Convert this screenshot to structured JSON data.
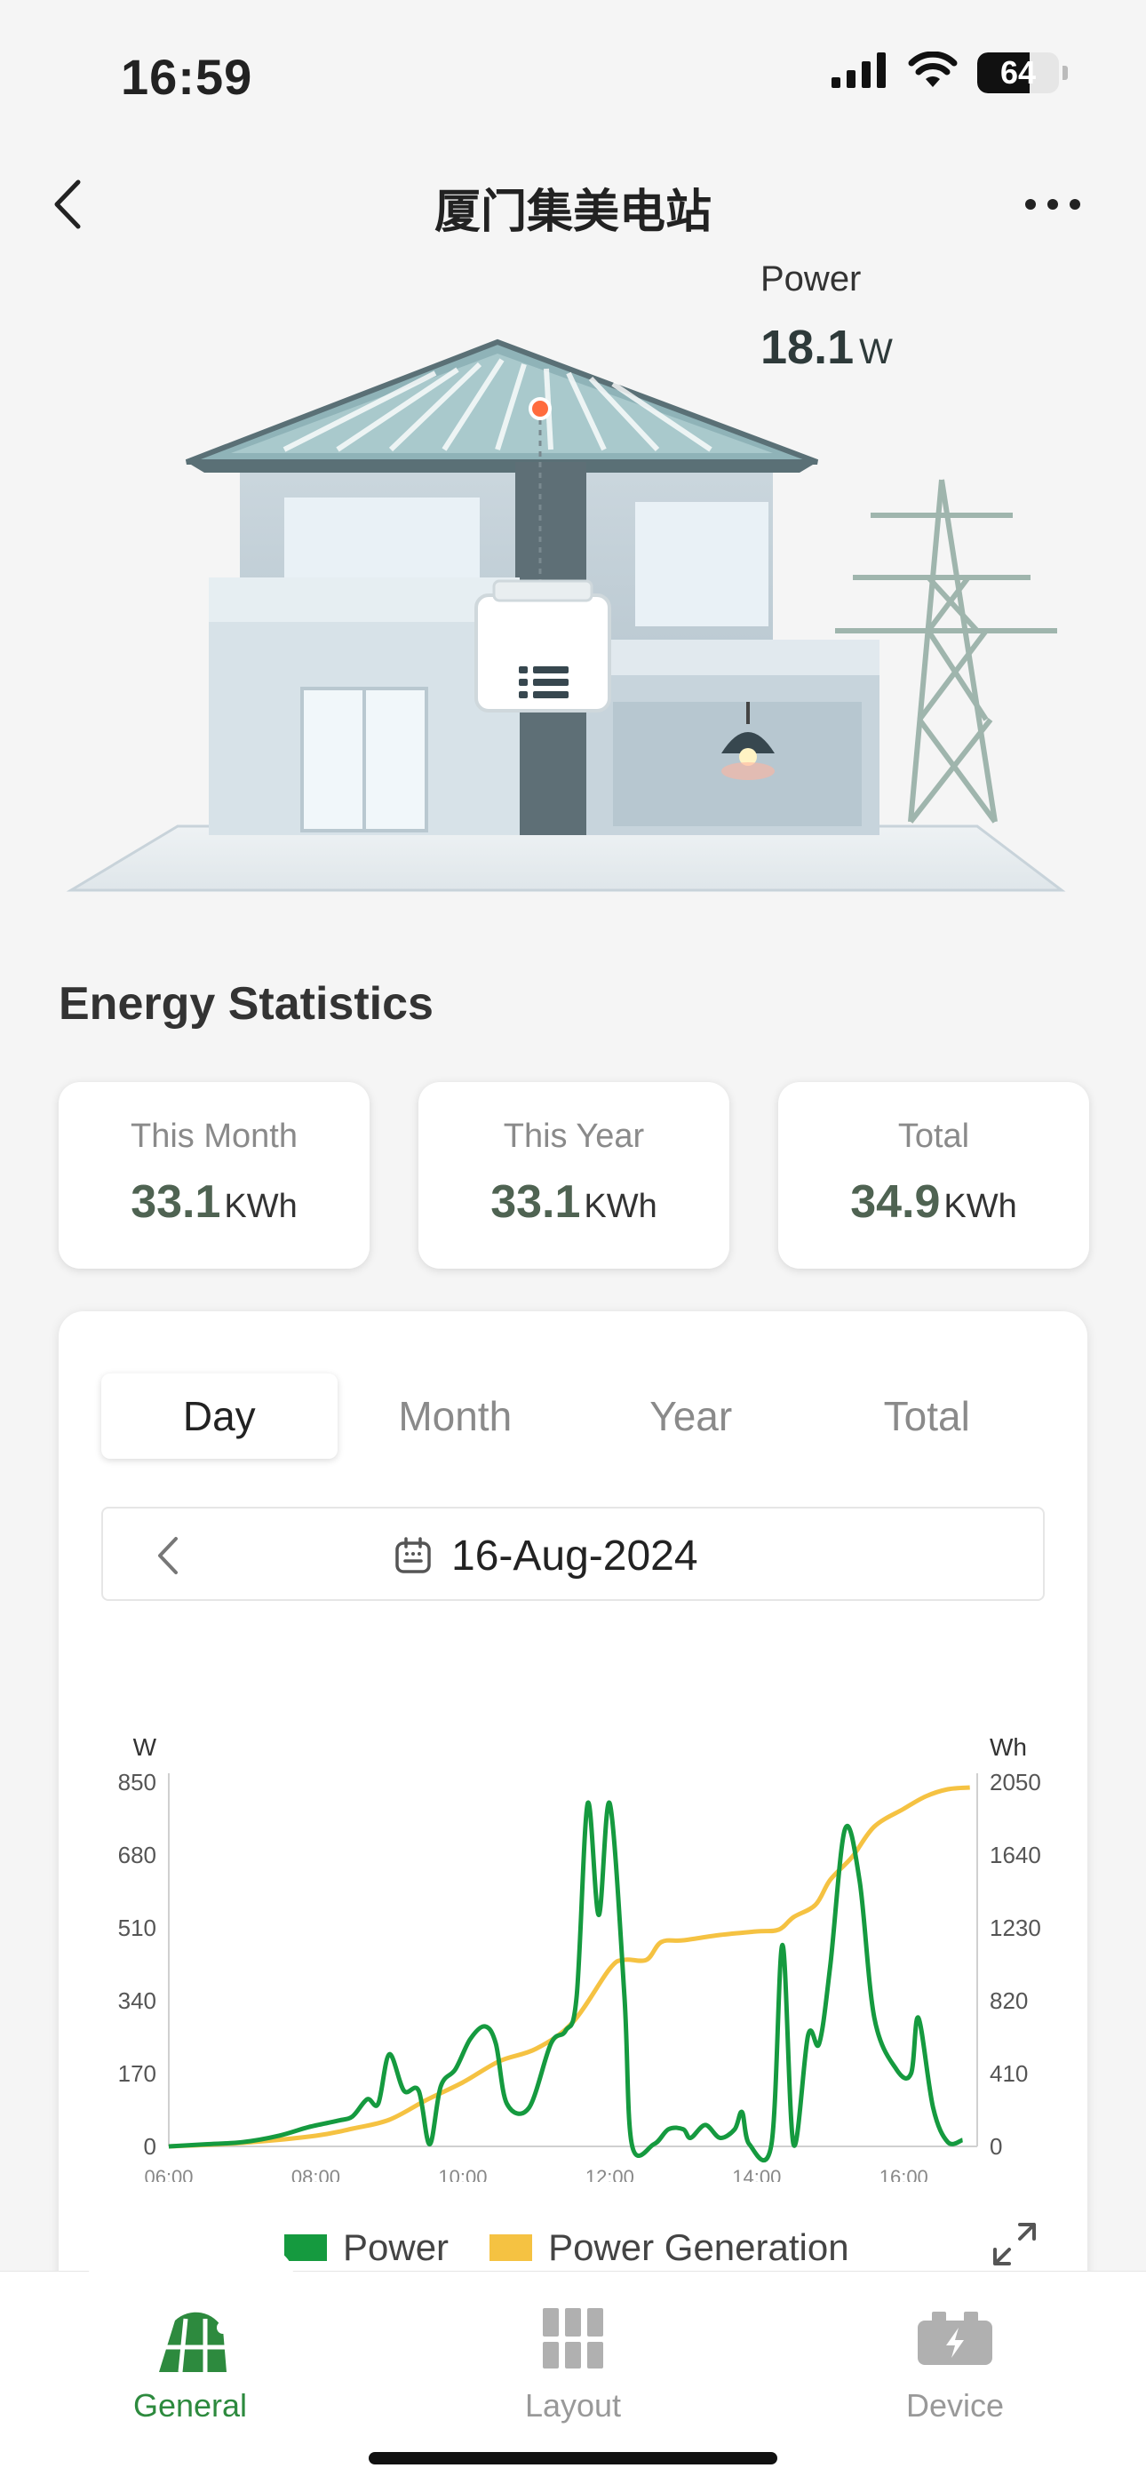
{
  "status_bar": {
    "time": "16:59",
    "battery": "64",
    "battery_level_percent": 64
  },
  "header": {
    "title": "厦门集美电站",
    "back_icon": "chevron-left-icon",
    "more_icon": "more-dots-icon"
  },
  "hero": {
    "power_label": "Power",
    "power_value": "18.1",
    "power_unit": "W"
  },
  "energy_statistics": {
    "title": "Energy Statistics",
    "cards": [
      {
        "label": "This Month",
        "value": "33.1",
        "unit": "KWh"
      },
      {
        "label": "This Year",
        "value": "33.1",
        "unit": "KWh"
      },
      {
        "label": "Total",
        "value": "34.9",
        "unit": "KWh"
      }
    ]
  },
  "chart_tabs": {
    "tabs": [
      "Day",
      "Month",
      "Year",
      "Total"
    ],
    "active": "Day"
  },
  "date_selector": {
    "date": "16-Aug-2024"
  },
  "chart_data": {
    "type": "line",
    "xlabel": "",
    "y_left_label": "W",
    "y_right_label": "Wh",
    "x_ticks": [
      "06:00",
      "08:00",
      "10:00",
      "12:00",
      "14:00",
      "16:00"
    ],
    "x_range_hours": [
      6.0,
      17.0
    ],
    "y_left_ticks": [
      0,
      170,
      340,
      510,
      680,
      850
    ],
    "y_right_ticks": [
      0,
      410,
      820,
      1230,
      1640,
      2050
    ],
    "ylim_left": [
      0,
      850
    ],
    "ylim_right": [
      0,
      2050
    ],
    "series": [
      {
        "name": "Power",
        "axis": "left",
        "color": "#159a3f",
        "points": [
          [
            6.0,
            0
          ],
          [
            6.5,
            5
          ],
          [
            7.0,
            10
          ],
          [
            7.5,
            25
          ],
          [
            7.9,
            45
          ],
          [
            8.3,
            60
          ],
          [
            8.5,
            70
          ],
          [
            8.7,
            110
          ],
          [
            8.85,
            100
          ],
          [
            9.0,
            215
          ],
          [
            9.2,
            130
          ],
          [
            9.4,
            130
          ],
          [
            9.55,
            5
          ],
          [
            9.7,
            140
          ],
          [
            9.9,
            180
          ],
          [
            10.1,
            250
          ],
          [
            10.3,
            280
          ],
          [
            10.45,
            240
          ],
          [
            10.6,
            100
          ],
          [
            10.9,
            90
          ],
          [
            11.2,
            240
          ],
          [
            11.4,
            270
          ],
          [
            11.55,
            350
          ],
          [
            11.7,
            800
          ],
          [
            11.85,
            540
          ],
          [
            12.0,
            800
          ],
          [
            12.2,
            350
          ],
          [
            12.3,
            5
          ],
          [
            12.6,
            5
          ],
          [
            12.8,
            40
          ],
          [
            13.0,
            40
          ],
          [
            13.1,
            20
          ],
          [
            13.3,
            50
          ],
          [
            13.5,
            20
          ],
          [
            13.7,
            40
          ],
          [
            13.8,
            80
          ],
          [
            13.9,
            5
          ],
          [
            14.2,
            5
          ],
          [
            14.35,
            470
          ],
          [
            14.5,
            5
          ],
          [
            14.7,
            260
          ],
          [
            14.85,
            240
          ],
          [
            15.0,
            420
          ],
          [
            15.2,
            740
          ],
          [
            15.4,
            620
          ],
          [
            15.6,
            300
          ],
          [
            15.9,
            180
          ],
          [
            16.1,
            170
          ],
          [
            16.2,
            300
          ],
          [
            16.4,
            90
          ],
          [
            16.6,
            10
          ],
          [
            16.8,
            15
          ]
        ]
      },
      {
        "name": "Power Generation",
        "axis": "right",
        "color": "#f5c242",
        "points": [
          [
            6.0,
            0
          ],
          [
            7.0,
            20
          ],
          [
            8.0,
            60
          ],
          [
            8.5,
            100
          ],
          [
            9.0,
            150
          ],
          [
            9.5,
            260
          ],
          [
            10.0,
            360
          ],
          [
            10.5,
            480
          ],
          [
            11.0,
            550
          ],
          [
            11.5,
            700
          ],
          [
            12.0,
            1000
          ],
          [
            12.2,
            1050
          ],
          [
            12.5,
            1050
          ],
          [
            12.7,
            1150
          ],
          [
            13.0,
            1160
          ],
          [
            13.5,
            1190
          ],
          [
            14.0,
            1210
          ],
          [
            14.3,
            1220
          ],
          [
            14.5,
            1290
          ],
          [
            14.8,
            1360
          ],
          [
            15.0,
            1500
          ],
          [
            15.3,
            1630
          ],
          [
            15.6,
            1800
          ],
          [
            16.0,
            1900
          ],
          [
            16.3,
            1970
          ],
          [
            16.6,
            2010
          ],
          [
            16.9,
            2020
          ]
        ]
      }
    ],
    "legend_position": "bottom"
  },
  "tab_bar": {
    "items": [
      {
        "label": "General",
        "icon": "solar-station-icon",
        "active": true
      },
      {
        "label": "Layout",
        "icon": "layout-grid-icon",
        "active": false
      },
      {
        "label": "Device",
        "icon": "battery-device-icon",
        "active": false
      }
    ]
  },
  "colors": {
    "accent": "#2d8a3e",
    "power": "#159a3f",
    "generation": "#f5c242"
  }
}
